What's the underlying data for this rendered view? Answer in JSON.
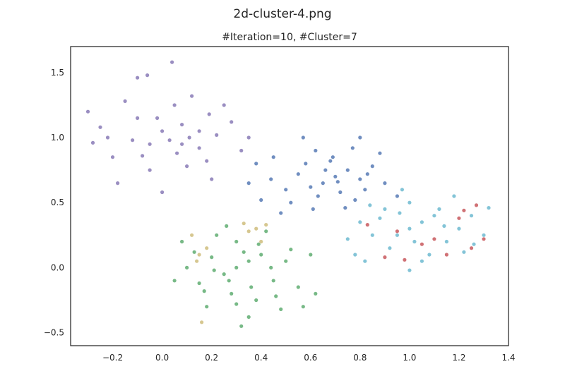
{
  "figure": {
    "suptitle": "2d-cluster-4.png",
    "title": "#Iteration=10, #Cluster=7"
  },
  "chart_data": {
    "type": "scatter",
    "title": "#Iteration=10, #Cluster=7",
    "xlabel": "",
    "ylabel": "",
    "xlim": [
      -0.37,
      1.4
    ],
    "ylim": [
      -0.6,
      1.7
    ],
    "grid": false,
    "legend": "none",
    "xticks": [
      "−0.2",
      "0.0",
      "0.2",
      "0.4",
      "0.6",
      "0.8",
      "1.0",
      "1.2",
      "1.4"
    ],
    "xtick_values": [
      -0.2,
      0.0,
      0.2,
      0.4,
      0.6,
      0.8,
      1.0,
      1.2,
      1.4
    ],
    "yticks": [
      "−0.5",
      "0.0",
      "0.5",
      "1.0",
      "1.5"
    ],
    "ytick_values": [
      -0.5,
      0.0,
      0.5,
      1.0,
      1.5
    ],
    "series": [
      {
        "color": "#8172b2",
        "points": [
          [
            0.0,
            1.05
          ],
          [
            0.03,
            0.98
          ],
          [
            -0.05,
            0.95
          ],
          [
            0.08,
            1.1
          ],
          [
            -0.1,
            1.15
          ],
          [
            0.15,
            0.92
          ],
          [
            -0.2,
            0.85
          ],
          [
            0.22,
            1.02
          ],
          [
            0.05,
            1.25
          ],
          [
            -0.15,
            1.28
          ],
          [
            0.28,
            1.12
          ],
          [
            -0.25,
            1.08
          ],
          [
            0.1,
            0.78
          ],
          [
            -0.05,
            0.75
          ],
          [
            0.18,
            0.82
          ],
          [
            0.32,
            0.9
          ],
          [
            -0.28,
            0.96
          ],
          [
            0.12,
            1.32
          ],
          [
            -0.1,
            1.46
          ],
          [
            0.04,
            1.58
          ],
          [
            -0.06,
            1.48
          ],
          [
            0.2,
            0.68
          ],
          [
            -0.18,
            0.65
          ],
          [
            0.0,
            0.58
          ],
          [
            0.35,
            1.0
          ],
          [
            -0.3,
            1.2
          ],
          [
            0.25,
            1.25
          ],
          [
            0.08,
            0.95
          ],
          [
            -0.02,
            1.15
          ],
          [
            0.15,
            1.05
          ],
          [
            -0.12,
            0.98
          ],
          [
            0.06,
            0.88
          ],
          [
            -0.08,
            0.86
          ],
          [
            0.19,
            1.18
          ],
          [
            -0.22,
            1.0
          ],
          [
            0.11,
            1.0
          ]
        ]
      },
      {
        "color": "#4c72b0",
        "points": [
          [
            0.7,
            0.7
          ],
          [
            0.65,
            0.65
          ],
          [
            0.75,
            0.75
          ],
          [
            0.6,
            0.62
          ],
          [
            0.8,
            0.68
          ],
          [
            0.68,
            0.82
          ],
          [
            0.72,
            0.58
          ],
          [
            0.55,
            0.72
          ],
          [
            0.85,
            0.78
          ],
          [
            0.62,
            0.9
          ],
          [
            0.78,
            0.52
          ],
          [
            0.5,
            0.6
          ],
          [
            0.9,
            0.65
          ],
          [
            0.57,
            1.0
          ],
          [
            0.8,
            1.0
          ],
          [
            0.45,
            0.85
          ],
          [
            0.4,
            0.52
          ],
          [
            0.95,
            0.55
          ],
          [
            0.48,
            0.42
          ],
          [
            0.74,
            0.46
          ],
          [
            0.35,
            0.65
          ],
          [
            0.38,
            0.8
          ],
          [
            0.88,
            0.88
          ],
          [
            0.66,
            0.75
          ],
          [
            0.71,
            0.66
          ],
          [
            0.63,
            0.55
          ],
          [
            0.82,
            0.6
          ],
          [
            0.58,
            0.8
          ],
          [
            0.77,
            0.92
          ],
          [
            0.52,
            0.5
          ],
          [
            0.69,
            0.85
          ],
          [
            0.83,
            0.72
          ],
          [
            0.44,
            0.68
          ],
          [
            0.61,
            0.45
          ]
        ]
      },
      {
        "color": "#64b5cd",
        "points": [
          [
            1.0,
            0.3
          ],
          [
            1.05,
            0.35
          ],
          [
            0.95,
            0.25
          ],
          [
            1.1,
            0.4
          ],
          [
            1.15,
            0.2
          ],
          [
            0.9,
            0.45
          ],
          [
            1.2,
            0.3
          ],
          [
            0.85,
            0.25
          ],
          [
            1.25,
            0.4
          ],
          [
            1.0,
            0.5
          ],
          [
            0.92,
            0.15
          ],
          [
            1.08,
            0.1
          ],
          [
            0.8,
            0.35
          ],
          [
            1.3,
            0.25
          ],
          [
            1.32,
            0.46
          ],
          [
            1.18,
            0.55
          ],
          [
            0.97,
            0.6
          ],
          [
            0.75,
            0.22
          ],
          [
            0.78,
            0.1
          ],
          [
            1.22,
            0.12
          ],
          [
            1.05,
            0.05
          ],
          [
            1.12,
            0.45
          ],
          [
            0.88,
            0.38
          ],
          [
            1.02,
            0.2
          ],
          [
            0.96,
            0.42
          ],
          [
            1.14,
            0.32
          ],
          [
            0.84,
            0.48
          ],
          [
            1.26,
            0.18
          ],
          [
            1.0,
            -0.02
          ],
          [
            0.82,
            0.05
          ]
        ]
      },
      {
        "color": "#c44e52",
        "points": [
          [
            0.95,
            0.28
          ],
          [
            1.1,
            0.22
          ],
          [
            1.2,
            0.38
          ],
          [
            0.9,
            0.08
          ],
          [
            1.25,
            0.15
          ],
          [
            1.3,
            0.22
          ],
          [
            0.83,
            0.33
          ],
          [
            1.15,
            0.1
          ],
          [
            0.98,
            0.06
          ],
          [
            1.22,
            0.44
          ],
          [
            1.05,
            0.18
          ],
          [
            1.27,
            0.48
          ]
        ]
      },
      {
        "color": "#55a868",
        "points": [
          [
            0.3,
            0.0
          ],
          [
            0.35,
            0.05
          ],
          [
            0.25,
            -0.05
          ],
          [
            0.4,
            0.1
          ],
          [
            0.2,
            0.08
          ],
          [
            0.45,
            -0.1
          ],
          [
            0.15,
            -0.12
          ],
          [
            0.5,
            0.05
          ],
          [
            0.3,
            0.2
          ],
          [
            0.28,
            -0.2
          ],
          [
            0.38,
            -0.25
          ],
          [
            0.22,
            0.25
          ],
          [
            0.55,
            -0.15
          ],
          [
            0.1,
            0.0
          ],
          [
            0.42,
            0.28
          ],
          [
            0.6,
            0.1
          ],
          [
            0.18,
            -0.3
          ],
          [
            0.35,
            -0.38
          ],
          [
            0.48,
            -0.32
          ],
          [
            0.05,
            -0.1
          ],
          [
            0.62,
            -0.2
          ],
          [
            0.32,
            -0.45
          ],
          [
            0.26,
            0.32
          ],
          [
            0.08,
            0.2
          ],
          [
            0.57,
            -0.3
          ],
          [
            0.33,
            0.12
          ],
          [
            0.27,
            -0.1
          ],
          [
            0.44,
            0.0
          ],
          [
            0.36,
            -0.15
          ],
          [
            0.21,
            -0.02
          ],
          [
            0.39,
            0.18
          ],
          [
            0.13,
            0.12
          ],
          [
            0.52,
            0.14
          ],
          [
            0.3,
            -0.28
          ],
          [
            0.17,
            -0.18
          ],
          [
            0.46,
            -0.22
          ]
        ]
      },
      {
        "color": "#ccb974",
        "points": [
          [
            0.12,
            0.25
          ],
          [
            0.35,
            0.28
          ],
          [
            0.38,
            0.3
          ],
          [
            0.15,
            0.1
          ],
          [
            0.18,
            0.15
          ],
          [
            0.42,
            0.33
          ],
          [
            0.16,
            -0.42
          ],
          [
            0.4,
            0.2
          ],
          [
            0.33,
            0.34
          ],
          [
            0.14,
            0.05
          ]
        ]
      }
    ]
  }
}
